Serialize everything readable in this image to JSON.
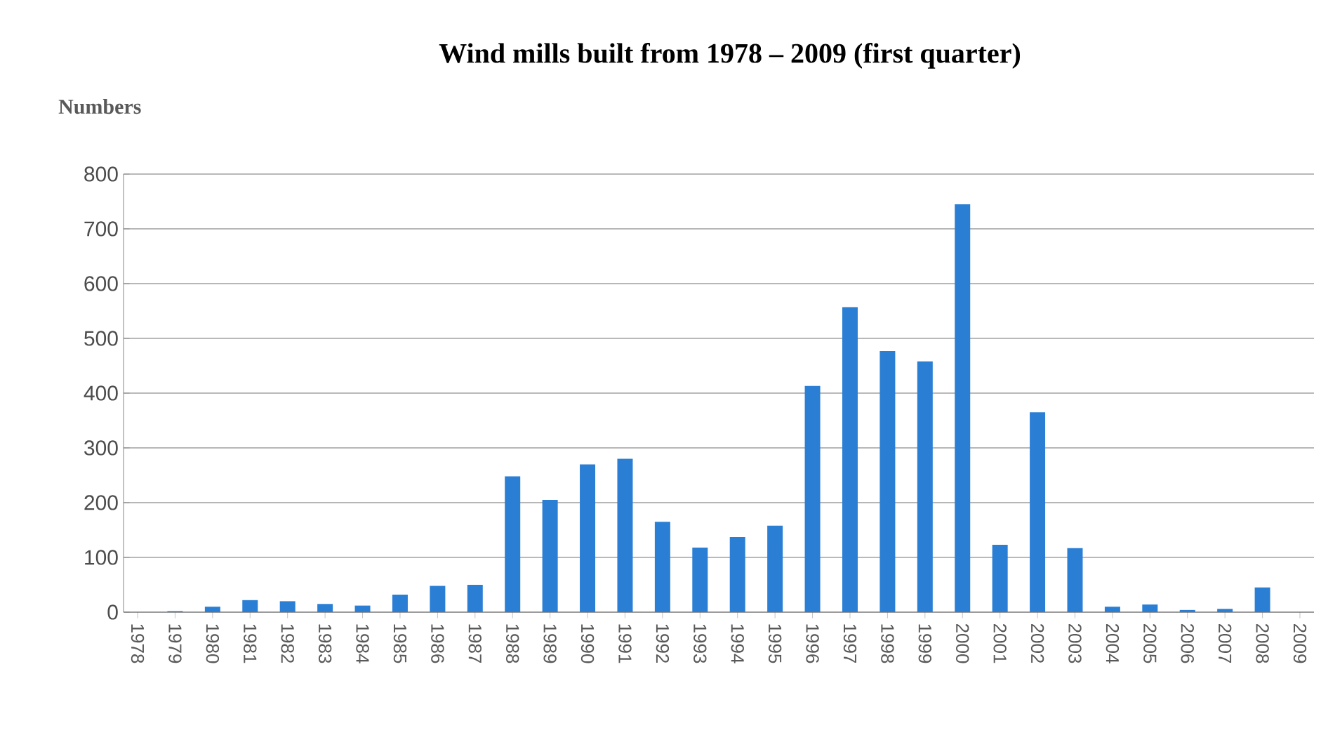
{
  "chart_data": {
    "type": "bar",
    "title": "Wind mills built from 1978 – 2009 (first quarter)",
    "ylabel": "Numbers",
    "categories": [
      "1978",
      "1979",
      "1980",
      "1981",
      "1982",
      "1983",
      "1984",
      "1985",
      "1986",
      "1987",
      "1988",
      "1989",
      "1990",
      "1991",
      "1992",
      "1993",
      "1994",
      "1995",
      "1996",
      "1997",
      "1998",
      "1999",
      "2000",
      "2001",
      "2002",
      "2003",
      "2004",
      "2005",
      "2006",
      "2007",
      "2008",
      "2009"
    ],
    "values": [
      0,
      2,
      10,
      22,
      20,
      15,
      12,
      32,
      48,
      50,
      248,
      205,
      270,
      280,
      165,
      118,
      137,
      158,
      413,
      557,
      477,
      458,
      745,
      123,
      365,
      117,
      10,
      14,
      4,
      6,
      45,
      0
    ],
    "color": "#2a7fd4",
    "ylim": [
      0,
      800
    ],
    "yticks": [
      0,
      100,
      200,
      300,
      400,
      500,
      600,
      700,
      800
    ],
    "grid": "y"
  }
}
